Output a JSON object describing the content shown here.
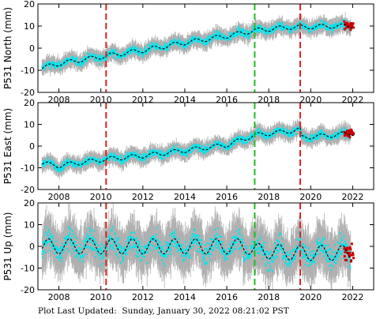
{
  "footer": {
    "label": "Plot Last Updated:",
    "timestamp": "Sunday, January 30, 2022 08:21:02 PST"
  },
  "colors": {
    "observations": "#00e5ee",
    "error_bars": "#b0b0b0",
    "model_fit": "#000000",
    "recent_points": "#cc0000",
    "red_offset_line": "#dd2222",
    "green_offset_line": "#22bb22"
  },
  "offset_lines": [
    {
      "x": 2010.25,
      "color": "red"
    },
    {
      "x": 2017.33,
      "color": "green"
    },
    {
      "x": 2019.5,
      "color": "red"
    }
  ],
  "chart_data": [
    {
      "type": "scatter",
      "ylabel": "P531 North (mm)",
      "xlim": [
        2007,
        2023
      ],
      "ylim": [
        -20,
        20
      ],
      "xticks": [
        2008,
        2010,
        2012,
        2014,
        2016,
        2018,
        2020,
        2022
      ],
      "yticks": [
        -20,
        -10,
        0,
        10,
        20
      ],
      "trend": [
        [
          2007.2,
          -9.0
        ],
        [
          2008.0,
          -7.0
        ],
        [
          2010.25,
          -3.5
        ],
        [
          2012.0,
          -1.0
        ],
        [
          2014.0,
          2.5
        ],
        [
          2016.0,
          5.5
        ],
        [
          2017.33,
          8.0
        ],
        [
          2019.0,
          9.5
        ],
        [
          2019.5,
          9.5
        ],
        [
          2021.0,
          10.0
        ],
        [
          2022.0,
          10.0
        ]
      ],
      "annual_amplitude": 1.0,
      "scatter_spread": 1.5,
      "error_bar": 3.0
    },
    {
      "type": "scatter",
      "ylabel": "P531 East (mm)",
      "xlim": [
        2007,
        2023
      ],
      "ylim": [
        -20,
        20
      ],
      "xticks": [
        2008,
        2010,
        2012,
        2014,
        2016,
        2018,
        2020,
        2022
      ],
      "yticks": [
        -20,
        -10,
        0,
        10,
        20
      ],
      "trend": [
        [
          2007.2,
          -8.0
        ],
        [
          2008.0,
          -9.0
        ],
        [
          2010.25,
          -6.0
        ],
        [
          2012.0,
          -4.5
        ],
        [
          2014.0,
          -2.0
        ],
        [
          2016.0,
          0.5
        ],
        [
          2017.33,
          5.0
        ],
        [
          2019.5,
          7.5
        ],
        [
          2019.55,
          4.0
        ],
        [
          2021.0,
          5.0
        ],
        [
          2022.0,
          6.0
        ]
      ],
      "annual_amplitude": 1.0,
      "scatter_spread": 1.5,
      "error_bar": 3.0
    },
    {
      "type": "scatter",
      "ylabel": "P531 Up (mm)",
      "xlim": [
        2007,
        2023
      ],
      "ylim": [
        -20,
        20
      ],
      "xticks": [
        2008,
        2010,
        2012,
        2014,
        2016,
        2018,
        2020,
        2022
      ],
      "yticks": [
        -20,
        -10,
        0,
        10,
        20
      ],
      "trend": [
        [
          2007.2,
          0.0
        ],
        [
          2010.0,
          0.0
        ],
        [
          2014.0,
          0.0
        ],
        [
          2017.0,
          0.0
        ],
        [
          2017.33,
          -2.0
        ],
        [
          2019.5,
          -3.0
        ],
        [
          2022.0,
          -3.0
        ]
      ],
      "annual_amplitude": 3.5,
      "scatter_spread": 4.5,
      "error_bar": 9.0
    }
  ]
}
